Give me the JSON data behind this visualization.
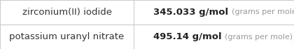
{
  "rows": [
    {
      "name": "zirconium(II) iodide",
      "value": "345.033",
      "unit": "g/mol",
      "unit_long": "(grams per mole)"
    },
    {
      "name": "potassium uranyl nitrate",
      "value": "495.14",
      "unit": "g/mol",
      "unit_long": "(grams per mole)"
    }
  ],
  "background_color": "#ffffff",
  "border_color": "#cccccc",
  "divider_color": "#cccccc",
  "name_fontsize": 9.5,
  "value_fontsize": 9.5,
  "unit_long_fontsize": 8.0,
  "name_color": "#333333",
  "value_color": "#222222",
  "unit_long_color": "#999999",
  "col_split": 0.455
}
